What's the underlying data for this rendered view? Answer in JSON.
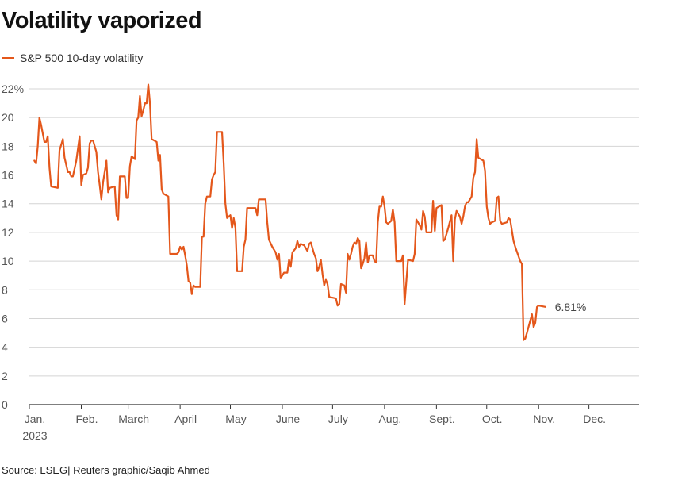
{
  "chart_data": {
    "type": "line",
    "title": "Volatility vaporized",
    "legend": [
      "S&P 500 10-day volatility"
    ],
    "xlabel": "",
    "ylabel": "",
    "ylim": [
      0,
      22
    ],
    "y_ticks": [
      0,
      2,
      4,
      6,
      8,
      10,
      12,
      14,
      16,
      18,
      20,
      22
    ],
    "y_tick_labels": [
      "0",
      "2",
      "4",
      "6",
      "8",
      "10",
      "12",
      "14",
      "16",
      "18",
      "20",
      "22%"
    ],
    "x_ticks": [
      {
        "label": "Jan.",
        "sublabel": "2023",
        "day": 0
      },
      {
        "label": "Feb.",
        "day": 31
      },
      {
        "label": "March",
        "day": 59
      },
      {
        "label": "April",
        "day": 90
      },
      {
        "label": "May",
        "day": 120
      },
      {
        "label": "June",
        "day": 151
      },
      {
        "label": "July",
        "day": 181
      },
      {
        "label": "Aug.",
        "day": 212
      },
      {
        "label": "Sept.",
        "day": 243
      },
      {
        "label": "Oct.",
        "day": 273
      },
      {
        "label": "Nov.",
        "day": 304
      },
      {
        "label": "Dec.",
        "day": 334
      }
    ],
    "xlim": [
      0,
      364
    ],
    "end_label": "6.81%",
    "series": [
      {
        "name": "S&P 500 10-day volatility",
        "color": "#e4571b",
        "points": [
          [
            3,
            17.0
          ],
          [
            4,
            16.8
          ],
          [
            5,
            18.0
          ],
          [
            6,
            20.0
          ],
          [
            7,
            19.5
          ],
          [
            9,
            18.3
          ],
          [
            10,
            18.3
          ],
          [
            11,
            18.7
          ],
          [
            12,
            16.5
          ],
          [
            13,
            15.2
          ],
          [
            17,
            15.1
          ],
          [
            18,
            17.7
          ],
          [
            20,
            18.5
          ],
          [
            21,
            17.2
          ],
          [
            23,
            16.2
          ],
          [
            24,
            16.2
          ],
          [
            25,
            15.9
          ],
          [
            26,
            15.9
          ],
          [
            28,
            17.0
          ],
          [
            30,
            18.7
          ],
          [
            31,
            15.3
          ],
          [
            32,
            16.0
          ],
          [
            34,
            16.1
          ],
          [
            35,
            16.5
          ],
          [
            36,
            18.2
          ],
          [
            37,
            18.4
          ],
          [
            38,
            18.4
          ],
          [
            40,
            17.6
          ],
          [
            41,
            16.2
          ],
          [
            42,
            15.3
          ],
          [
            43,
            14.3
          ],
          [
            44,
            15.5
          ],
          [
            46,
            17.0
          ],
          [
            47,
            14.8
          ],
          [
            48,
            15.1
          ],
          [
            51,
            15.2
          ],
          [
            52,
            13.2
          ],
          [
            53,
            12.9
          ],
          [
            54,
            15.9
          ],
          [
            57,
            15.9
          ],
          [
            58,
            14.4
          ],
          [
            59,
            14.4
          ],
          [
            60,
            16.6
          ],
          [
            61,
            17.3
          ],
          [
            63,
            17.1
          ],
          [
            64,
            19.8
          ],
          [
            65,
            20.0
          ],
          [
            66,
            21.5
          ],
          [
            67,
            20.1
          ],
          [
            68,
            20.5
          ],
          [
            69,
            21.0
          ],
          [
            70,
            21.0
          ],
          [
            71,
            22.3
          ],
          [
            72,
            21.0
          ],
          [
            73,
            18.5
          ],
          [
            76,
            18.3
          ],
          [
            77,
            17.0
          ],
          [
            78,
            17.4
          ],
          [
            79,
            15.0
          ],
          [
            80,
            14.7
          ],
          [
            83,
            14.5
          ],
          [
            84,
            10.5
          ],
          [
            88,
            10.5
          ],
          [
            89,
            10.6
          ],
          [
            90,
            11.0
          ],
          [
            91,
            10.8
          ],
          [
            92,
            11.0
          ],
          [
            93,
            10.4
          ],
          [
            94,
            9.7
          ],
          [
            95,
            8.6
          ],
          [
            96,
            8.5
          ],
          [
            97,
            7.7
          ],
          [
            98,
            8.3
          ],
          [
            99,
            8.2
          ],
          [
            102,
            8.2
          ],
          [
            103,
            11.7
          ],
          [
            104,
            11.7
          ],
          [
            105,
            14.0
          ],
          [
            106,
            14.5
          ],
          [
            108,
            14.5
          ],
          [
            109,
            15.7
          ],
          [
            110,
            16.0
          ],
          [
            111,
            16.2
          ],
          [
            112,
            19.0
          ],
          [
            115,
            19.0
          ],
          [
            116,
            16.8
          ],
          [
            117,
            14.0
          ],
          [
            118,
            13.0
          ],
          [
            120,
            13.2
          ],
          [
            121,
            12.3
          ],
          [
            122,
            13.0
          ],
          [
            123,
            12.3
          ],
          [
            124,
            9.3
          ],
          [
            127,
            9.3
          ],
          [
            128,
            11.0
          ],
          [
            129,
            11.5
          ],
          [
            130,
            13.7
          ],
          [
            135,
            13.7
          ],
          [
            136,
            13.2
          ],
          [
            137,
            14.3
          ],
          [
            141,
            14.3
          ],
          [
            142,
            12.7
          ],
          [
            143,
            11.5
          ],
          [
            145,
            11.0
          ],
          [
            147,
            10.6
          ],
          [
            148,
            10.1
          ],
          [
            149,
            10.5
          ],
          [
            150,
            8.8
          ],
          [
            151,
            9.0
          ],
          [
            152,
            9.2
          ],
          [
            154,
            9.2
          ],
          [
            155,
            10.1
          ],
          [
            156,
            9.6
          ],
          [
            157,
            10.6
          ],
          [
            159,
            10.9
          ],
          [
            160,
            11.4
          ],
          [
            161,
            11.0
          ],
          [
            162,
            11.2
          ],
          [
            164,
            11.1
          ],
          [
            166,
            10.7
          ],
          [
            167,
            11.2
          ],
          [
            168,
            11.3
          ],
          [
            170,
            10.5
          ],
          [
            171,
            10.2
          ],
          [
            172,
            9.3
          ],
          [
            173,
            9.6
          ],
          [
            174,
            10.1
          ],
          [
            175,
            9.1
          ],
          [
            176,
            8.3
          ],
          [
            177,
            8.7
          ],
          [
            178,
            8.4
          ],
          [
            179,
            7.5
          ],
          [
            183,
            7.4
          ],
          [
            184,
            6.9
          ],
          [
            185,
            7.0
          ],
          [
            186,
            8.4
          ],
          [
            188,
            8.3
          ],
          [
            189,
            7.8
          ],
          [
            190,
            10.5
          ],
          [
            191,
            10.1
          ],
          [
            192,
            10.5
          ],
          [
            193,
            11.0
          ],
          [
            194,
            11.3
          ],
          [
            195,
            11.2
          ],
          [
            196,
            11.6
          ],
          [
            197,
            11.4
          ],
          [
            198,
            9.5
          ],
          [
            199,
            9.8
          ],
          [
            200,
            10.2
          ],
          [
            201,
            11.3
          ],
          [
            202,
            9.9
          ],
          [
            203,
            10.4
          ],
          [
            205,
            10.4
          ],
          [
            206,
            10.0
          ],
          [
            207,
            9.9
          ],
          [
            208,
            12.7
          ],
          [
            209,
            13.8
          ],
          [
            210,
            13.8
          ],
          [
            211,
            14.5
          ],
          [
            212,
            13.8
          ],
          [
            213,
            12.7
          ],
          [
            214,
            12.6
          ],
          [
            216,
            12.8
          ],
          [
            217,
            13.6
          ],
          [
            218,
            12.7
          ],
          [
            219,
            10.0
          ],
          [
            222,
            10.0
          ],
          [
            223,
            10.4
          ],
          [
            224,
            7.0
          ],
          [
            226,
            10.1
          ],
          [
            229,
            10.0
          ],
          [
            230,
            10.5
          ],
          [
            231,
            12.9
          ],
          [
            233,
            12.5
          ],
          [
            234,
            12.2
          ],
          [
            235,
            13.5
          ],
          [
            236,
            13.1
          ],
          [
            237,
            12.0
          ],
          [
            240,
            12.0
          ],
          [
            241,
            14.2
          ],
          [
            242,
            12.1
          ],
          [
            243,
            13.7
          ],
          [
            246,
            13.9
          ],
          [
            247,
            11.4
          ],
          [
            248,
            11.5
          ],
          [
            250,
            12.3
          ],
          [
            252,
            13.2
          ],
          [
            253,
            10.0
          ],
          [
            254,
            12.9
          ],
          [
            255,
            13.5
          ],
          [
            257,
            13.1
          ],
          [
            258,
            12.6
          ],
          [
            259,
            13.1
          ],
          [
            260,
            13.8
          ],
          [
            261,
            14.1
          ],
          [
            262,
            14.1
          ],
          [
            263,
            14.3
          ],
          [
            264,
            14.5
          ],
          [
            265,
            15.8
          ],
          [
            266,
            16.2
          ],
          [
            267,
            18.5
          ],
          [
            268,
            17.2
          ],
          [
            271,
            17.0
          ],
          [
            272,
            16.3
          ],
          [
            273,
            13.8
          ],
          [
            274,
            13.0
          ],
          [
            275,
            12.6
          ],
          [
            276,
            12.7
          ],
          [
            278,
            12.8
          ],
          [
            279,
            14.4
          ],
          [
            280,
            14.5
          ],
          [
            281,
            12.8
          ],
          [
            282,
            12.6
          ],
          [
            285,
            12.7
          ],
          [
            286,
            13.0
          ],
          [
            287,
            12.9
          ],
          [
            289,
            11.4
          ],
          [
            290,
            11.0
          ],
          [
            293,
            10.0
          ],
          [
            294,
            9.8
          ],
          [
            295,
            4.5
          ],
          [
            296,
            4.6
          ],
          [
            297,
            5.0
          ],
          [
            300,
            6.3
          ],
          [
            301,
            5.4
          ],
          [
            302,
            5.7
          ],
          [
            303,
            6.8
          ],
          [
            304,
            6.9
          ],
          [
            308,
            6.81
          ]
        ]
      }
    ]
  },
  "footer": {
    "source": "Source: LSEG| Reuters graphic/Saqib Ahmed"
  }
}
